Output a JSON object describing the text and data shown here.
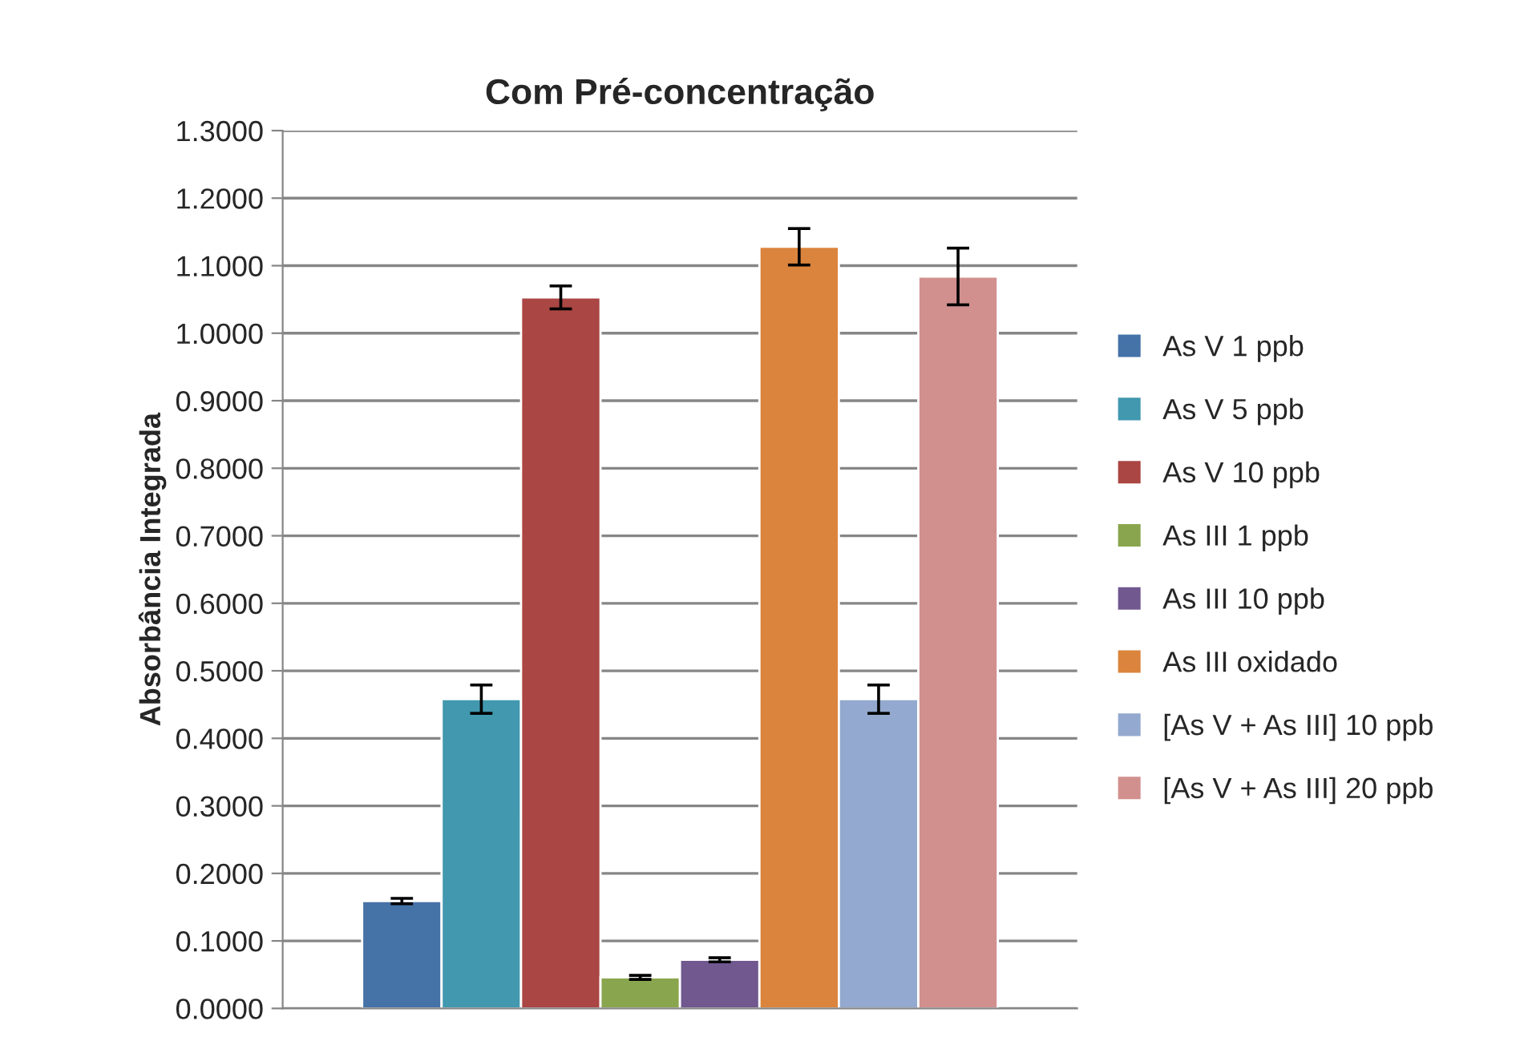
{
  "chart_data": {
    "type": "bar",
    "title": "Com Pré-concentração",
    "ylabel": "Absorbância Integrada",
    "categories": [
      null
    ],
    "series": [
      {
        "name": "As V 1 ppb",
        "color": "#4572a7",
        "values": [
          0.159
        ],
        "errors": [
          0.004
        ]
      },
      {
        "name": "As V 5 ppb",
        "color": "#4198af",
        "values": [
          0.458
        ],
        "errors": [
          0.021
        ]
      },
      {
        "name": "As V 10 ppb",
        "color": "#aa4643",
        "values": [
          1.053
        ],
        "errors": [
          0.017
        ]
      },
      {
        "name": "As III 1 ppb",
        "color": "#89a54e",
        "values": [
          0.046
        ],
        "errors": [
          0.003
        ]
      },
      {
        "name": "As III 10 ppb",
        "color": "#71588f",
        "values": [
          0.072
        ],
        "errors": [
          0.003
        ]
      },
      {
        "name": "As III oxidado",
        "color": "#db843d",
        "values": [
          1.128
        ],
        "errors": [
          0.027
        ]
      },
      {
        "name": "[As V + As III] 10 ppb",
        "color": "#93a9cf",
        "values": [
          0.458
        ],
        "errors": [
          0.021
        ]
      },
      {
        "name": "[As V + As III] 20 ppb",
        "color": "#d1908e",
        "values": [
          1.084
        ],
        "errors": [
          0.042
        ]
      }
    ],
    "ylim": [
      0,
      1.3
    ],
    "yticks": [
      {
        "value": 0,
        "label": "0.0000"
      },
      {
        "value": 0.1,
        "label": "0.1000"
      },
      {
        "value": 0.2,
        "label": "0.2000"
      },
      {
        "value": 0.3,
        "label": "0.3000"
      },
      {
        "value": 0.4,
        "label": "0.4000"
      },
      {
        "value": 0.5,
        "label": "0.5000"
      },
      {
        "value": 0.6,
        "label": "0.6000"
      },
      {
        "value": 0.7,
        "label": "0.7000"
      },
      {
        "value": 0.8,
        "label": "0.8000"
      },
      {
        "value": 0.9,
        "label": "0.9000"
      },
      {
        "value": 1.0,
        "label": "1.0000"
      },
      {
        "value": 1.1,
        "label": "1.1000"
      },
      {
        "value": 1.2,
        "label": "1.2000"
      },
      {
        "value": 1.3,
        "label": "1.3000"
      }
    ],
    "grid": "y",
    "legend": "right"
  }
}
